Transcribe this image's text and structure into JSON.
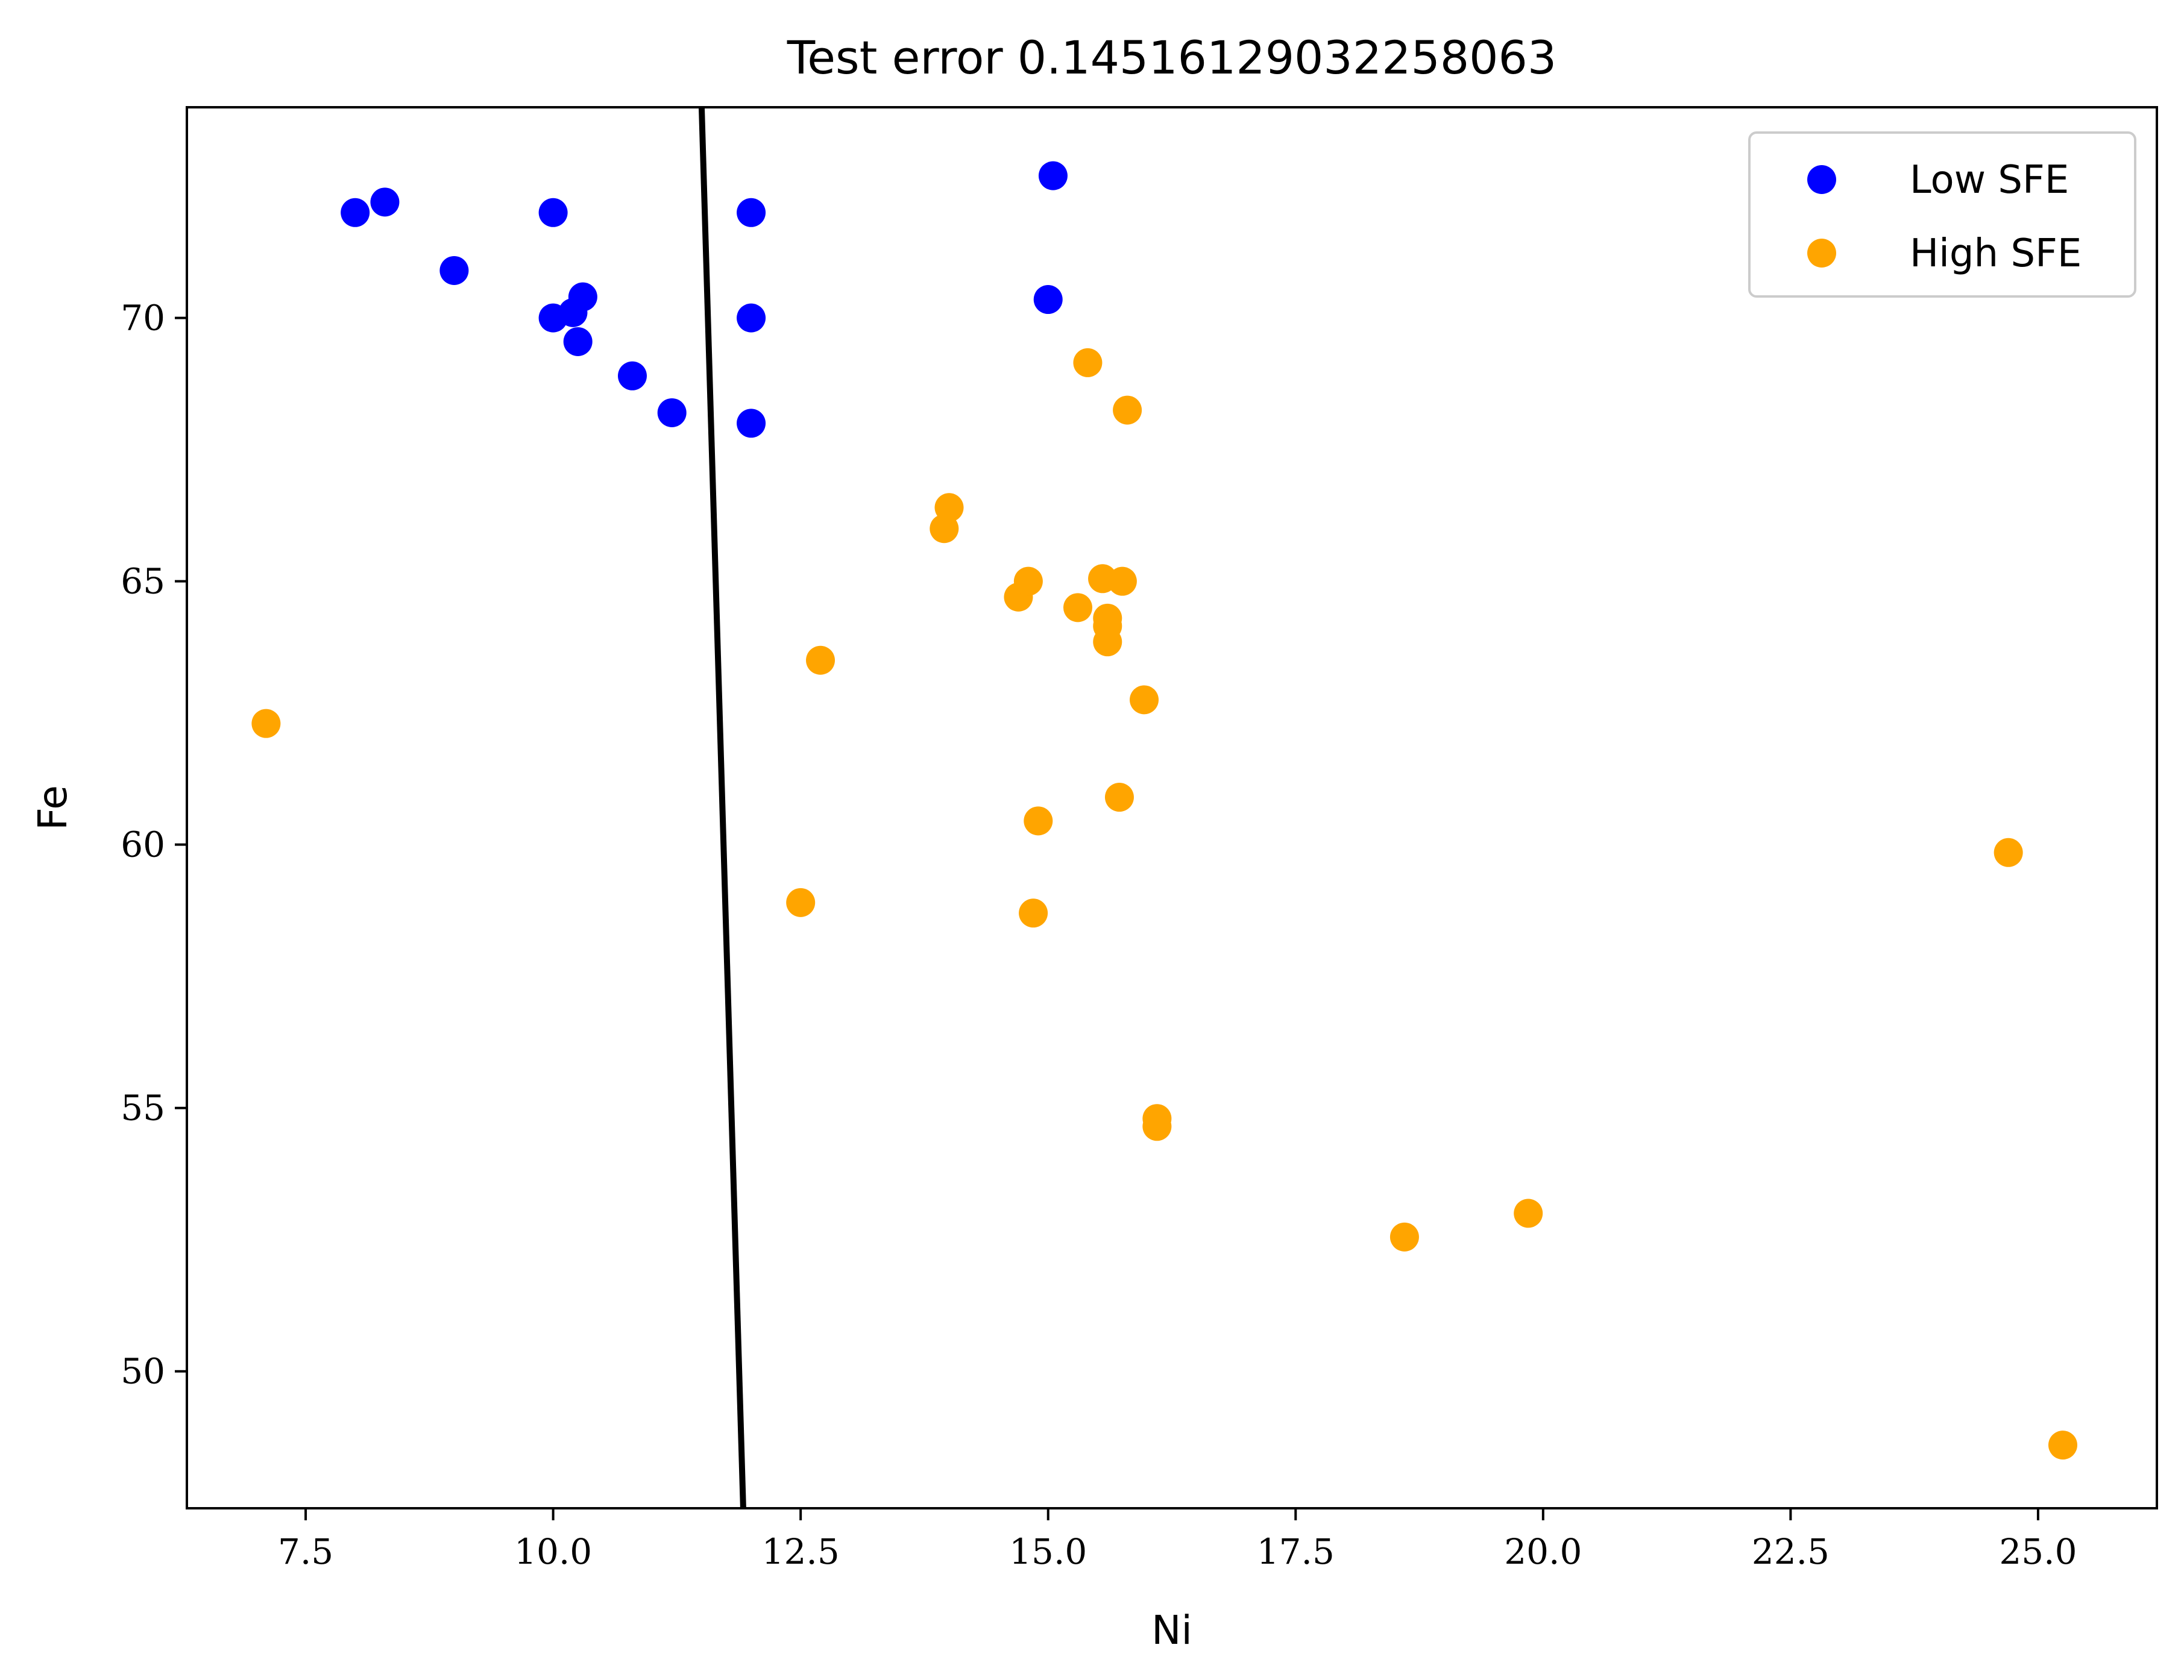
{
  "chart_data": {
    "type": "scatter",
    "title": "Test error 0.14516129032258063",
    "xlabel": "Ni",
    "ylabel": "Fe",
    "xlim": [
      6.3,
      26.2
    ],
    "ylim": [
      47.4,
      74.0
    ],
    "x_ticks": [
      7.5,
      10.0,
      12.5,
      15.0,
      17.5,
      20.0,
      22.5,
      25.0
    ],
    "x_tick_labels": [
      "7.5",
      "10.0",
      "12.5",
      "15.0",
      "17.5",
      "20.0",
      "22.5",
      "25.0"
    ],
    "y_ticks": [
      50,
      55,
      60,
      65,
      70
    ],
    "y_tick_labels": [
      "50",
      "55",
      "60",
      "65",
      "70"
    ],
    "grid": false,
    "legend_position": "top-right",
    "series": [
      {
        "name": "Low SFE",
        "color": "#0000ff",
        "points": [
          [
            8.0,
            72.0
          ],
          [
            8.3,
            72.2
          ],
          [
            9.0,
            70.9
          ],
          [
            10.0,
            72.0
          ],
          [
            10.0,
            70.0
          ],
          [
            10.2,
            70.1
          ],
          [
            10.3,
            70.4
          ],
          [
            10.25,
            69.55
          ],
          [
            10.8,
            68.9
          ],
          [
            11.2,
            68.2
          ],
          [
            12.0,
            72.0
          ],
          [
            12.0,
            70.0
          ],
          [
            12.0,
            68.0
          ],
          [
            15.05,
            72.7
          ],
          [
            15.0,
            70.35
          ]
        ]
      },
      {
        "name": "High SFE",
        "color": "#ffa500",
        "points": [
          [
            7.1,
            62.3
          ],
          [
            12.5,
            58.9
          ],
          [
            12.7,
            63.5
          ],
          [
            13.95,
            66.0
          ],
          [
            14.0,
            66.4
          ],
          [
            14.7,
            64.7
          ],
          [
            14.8,
            65.0
          ],
          [
            14.85,
            58.7
          ],
          [
            14.9,
            60.45
          ],
          [
            15.3,
            64.5
          ],
          [
            15.4,
            69.15
          ],
          [
            15.55,
            65.05
          ],
          [
            15.6,
            64.3
          ],
          [
            15.6,
            64.15
          ],
          [
            15.6,
            63.85
          ],
          [
            15.75,
            65.0
          ],
          [
            15.72,
            60.9
          ],
          [
            15.8,
            68.25
          ],
          [
            15.97,
            62.75
          ],
          [
            16.1,
            54.8
          ],
          [
            16.1,
            54.65
          ],
          [
            18.6,
            52.55
          ],
          [
            19.85,
            53.0
          ],
          [
            24.7,
            59.85
          ],
          [
            25.25,
            48.6
          ]
        ]
      }
    ],
    "decision_boundary": {
      "color": "#000000",
      "points": [
        [
          11.5,
          74.0
        ],
        [
          11.92,
          47.4
        ]
      ]
    }
  }
}
